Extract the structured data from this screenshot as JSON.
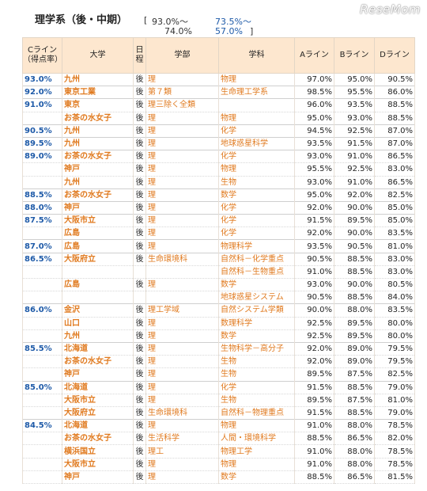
{
  "logo": "ReseMom",
  "title": "理学系（後・中期）",
  "range": {
    "open": "[",
    "top_black": "93.0%～",
    "top_blue": "73.5%～",
    "bottom_black": "74.0%",
    "bottom_blue": "57.0%",
    "close": "]"
  },
  "headers": {
    "cline": "Cライン（得点率）",
    "univ": "大学",
    "sched": "日程",
    "faculty": "学部",
    "dept": "学科",
    "a": "Aライン",
    "b": "Bライン",
    "d": "Dライン"
  },
  "rows": [
    {
      "c": "93.0%",
      "u": "九州",
      "s": "後",
      "f": "理",
      "d": "物理",
      "a": "97.0%",
      "b": "95.0%",
      "dl": "90.5%",
      "g": true
    },
    {
      "c": "92.0%",
      "u": "東京工業",
      "s": "後",
      "f": "第７類",
      "d": "生命理工学系",
      "a": "98.5%",
      "b": "95.5%",
      "dl": "86.0%",
      "g": true
    },
    {
      "c": "91.0%",
      "u": "東京",
      "s": "後",
      "f": "理三除く全類",
      "d": "",
      "a": "96.0%",
      "b": "93.5%",
      "dl": "88.5%",
      "g": true
    },
    {
      "c": "",
      "u": "お茶の水女子",
      "s": "後",
      "f": "理",
      "d": "物理",
      "a": "95.0%",
      "b": "93.0%",
      "dl": "88.5%",
      "g": false
    },
    {
      "c": "90.5%",
      "u": "九州",
      "s": "後",
      "f": "理",
      "d": "化学",
      "a": "94.5%",
      "b": "92.5%",
      "dl": "87.0%",
      "g": true
    },
    {
      "c": "89.5%",
      "u": "九州",
      "s": "後",
      "f": "理",
      "d": "地球惑星科学",
      "a": "93.5%",
      "b": "91.5%",
      "dl": "87.0%",
      "g": true
    },
    {
      "c": "89.0%",
      "u": "お茶の水女子",
      "s": "後",
      "f": "理",
      "d": "化学",
      "a": "93.0%",
      "b": "91.0%",
      "dl": "86.5%",
      "g": true
    },
    {
      "c": "",
      "u": "神戸",
      "s": "後",
      "f": "理",
      "d": "物理",
      "a": "95.5%",
      "b": "92.5%",
      "dl": "83.0%",
      "g": false
    },
    {
      "c": "",
      "u": "九州",
      "s": "後",
      "f": "理",
      "d": "生物",
      "a": "93.0%",
      "b": "91.0%",
      "dl": "86.5%",
      "g": false
    },
    {
      "c": "88.5%",
      "u": "お茶の水女子",
      "s": "後",
      "f": "理",
      "d": "数学",
      "a": "95.0%",
      "b": "92.0%",
      "dl": "82.5%",
      "g": true
    },
    {
      "c": "88.0%",
      "u": "神戸",
      "s": "後",
      "f": "理",
      "d": "化学",
      "a": "92.0%",
      "b": "90.0%",
      "dl": "85.0%",
      "g": true
    },
    {
      "c": "87.5%",
      "u": "大阪市立",
      "s": "後",
      "f": "理",
      "d": "化学",
      "a": "91.5%",
      "b": "89.5%",
      "dl": "85.0%",
      "g": true
    },
    {
      "c": "",
      "u": "広島",
      "s": "後",
      "f": "理",
      "d": "化学",
      "a": "92.0%",
      "b": "90.0%",
      "dl": "83.5%",
      "g": false
    },
    {
      "c": "87.0%",
      "u": "広島",
      "s": "後",
      "f": "理",
      "d": "物理科学",
      "a": "93.5%",
      "b": "90.5%",
      "dl": "81.0%",
      "g": true
    },
    {
      "c": "86.5%",
      "u": "大阪府立",
      "s": "後",
      "f": "生命環境科",
      "d": "自然科－化学重点",
      "a": "90.5%",
      "b": "88.5%",
      "dl": "83.0%",
      "g": true
    },
    {
      "c": "",
      "u": "",
      "s": "",
      "f": "",
      "d": "自然科－生物重点",
      "a": "91.0%",
      "b": "88.5%",
      "dl": "83.0%",
      "g": false
    },
    {
      "c": "",
      "u": "広島",
      "s": "後",
      "f": "理",
      "d": "数学",
      "a": "93.0%",
      "b": "90.0%",
      "dl": "80.5%",
      "g": false
    },
    {
      "c": "",
      "u": "",
      "s": "",
      "f": "",
      "d": "地球惑星システム",
      "a": "90.5%",
      "b": "88.5%",
      "dl": "84.0%",
      "g": false
    },
    {
      "c": "86.0%",
      "u": "金沢",
      "s": "後",
      "f": "理工学域",
      "d": "自然システム学類",
      "a": "90.0%",
      "b": "88.0%",
      "dl": "83.5%",
      "g": true
    },
    {
      "c": "",
      "u": "山口",
      "s": "後",
      "f": "理",
      "d": "数理科学",
      "a": "92.5%",
      "b": "89.5%",
      "dl": "80.0%",
      "g": false
    },
    {
      "c": "",
      "u": "九州",
      "s": "後",
      "f": "理",
      "d": "数学",
      "a": "92.5%",
      "b": "89.5%",
      "dl": "80.0%",
      "g": false
    },
    {
      "c": "85.5%",
      "u": "北海道",
      "s": "後",
      "f": "理",
      "d": "生物科学－高分子",
      "a": "92.0%",
      "b": "89.0%",
      "dl": "79.5%",
      "g": true
    },
    {
      "c": "",
      "u": "お茶の水女子",
      "s": "後",
      "f": "理",
      "d": "生物",
      "a": "92.0%",
      "b": "89.0%",
      "dl": "79.5%",
      "g": false
    },
    {
      "c": "",
      "u": "神戸",
      "s": "後",
      "f": "理",
      "d": "生物",
      "a": "89.5%",
      "b": "87.5%",
      "dl": "82.5%",
      "g": false
    },
    {
      "c": "85.0%",
      "u": "北海道",
      "s": "後",
      "f": "理",
      "d": "化学",
      "a": "91.5%",
      "b": "88.5%",
      "dl": "79.0%",
      "g": true
    },
    {
      "c": "",
      "u": "大阪市立",
      "s": "後",
      "f": "理",
      "d": "生物",
      "a": "89.5%",
      "b": "87.5%",
      "dl": "81.0%",
      "g": false
    },
    {
      "c": "",
      "u": "大阪府立",
      "s": "後",
      "f": "生命環境科",
      "d": "自然科－物理重点",
      "a": "91.5%",
      "b": "88.5%",
      "dl": "79.0%",
      "g": false
    },
    {
      "c": "84.5%",
      "u": "北海道",
      "s": "後",
      "f": "理",
      "d": "物理",
      "a": "91.0%",
      "b": "88.0%",
      "dl": "78.5%",
      "g": true
    },
    {
      "c": "",
      "u": "お茶の水女子",
      "s": "後",
      "f": "生活科学",
      "d": "人間・環境科学",
      "a": "88.5%",
      "b": "86.5%",
      "dl": "82.0%",
      "g": false
    },
    {
      "c": "",
      "u": "横浜国立",
      "s": "後",
      "f": "理工",
      "d": "物理工学",
      "a": "91.0%",
      "b": "88.0%",
      "dl": "78.5%",
      "g": false
    },
    {
      "c": "",
      "u": "大阪市立",
      "s": "後",
      "f": "理",
      "d": "物理",
      "a": "91.0%",
      "b": "88.0%",
      "dl": "78.5%",
      "g": false
    },
    {
      "c": "",
      "u": "神戸",
      "s": "後",
      "f": "理",
      "d": "数学",
      "a": "88.5%",
      "b": "86.5%",
      "dl": "81.5%",
      "g": false
    }
  ]
}
